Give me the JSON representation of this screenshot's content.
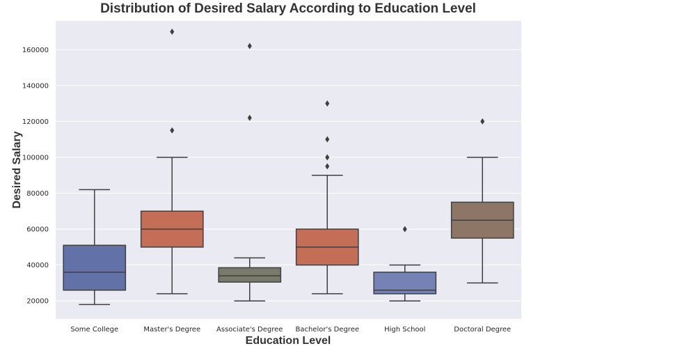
{
  "chart_data": {
    "type": "box",
    "title": "Distribution of Desired Salary According to Education Level",
    "xlabel": "Education Level",
    "ylabel": "Desired Salary",
    "ylim": [
      10000,
      176000
    ],
    "y_ticks": [
      20000,
      40000,
      60000,
      80000,
      100000,
      120000,
      140000,
      160000
    ],
    "grid": true,
    "categories": [
      "Some College",
      "Master's Degree",
      "Associate's Degree",
      "Bachelor's Degree",
      "High School",
      "Doctoral Degree"
    ],
    "boxes": [
      {
        "category": "Some College",
        "whisker_low": 18000,
        "q1": 26000,
        "median": 36000,
        "q3": 51000,
        "whisker_high": 82000,
        "outliers": [],
        "color": "#6271a8"
      },
      {
        "category": "Master's Degree",
        "whisker_low": 24000,
        "q1": 50000,
        "median": 60000,
        "q3": 70000,
        "whisker_high": 100000,
        "outliers": [
          115000,
          170000
        ],
        "color": "#c46e57"
      },
      {
        "category": "Associate's Degree",
        "whisker_low": 20000,
        "q1": 30500,
        "median": 34000,
        "q3": 38500,
        "whisker_high": 44000,
        "outliers": [
          122000,
          162000
        ],
        "color": "#7a7a6a"
      },
      {
        "category": "Bachelor's Degree",
        "whisker_low": 24000,
        "q1": 40000,
        "median": 50000,
        "q3": 60000,
        "whisker_high": 90000,
        "outliers": [
          95000,
          100000,
          110000,
          130000
        ],
        "color": "#c46e57"
      },
      {
        "category": "High School",
        "whisker_low": 20000,
        "q1": 24000,
        "median": 26000,
        "q3": 36000,
        "whisker_high": 40000,
        "outliers": [
          60000
        ],
        "color": "#7482b5"
      },
      {
        "category": "Doctoral Degree",
        "whisker_low": 30000,
        "q1": 55000,
        "median": 65000,
        "q3": 75000,
        "whisker_high": 100000,
        "outliers": [
          120000
        ],
        "color": "#8e7666"
      }
    ],
    "colors": {
      "plot_background": "#eaeaf2",
      "grid": "#ffffff",
      "line": "#3f3f3f"
    }
  }
}
